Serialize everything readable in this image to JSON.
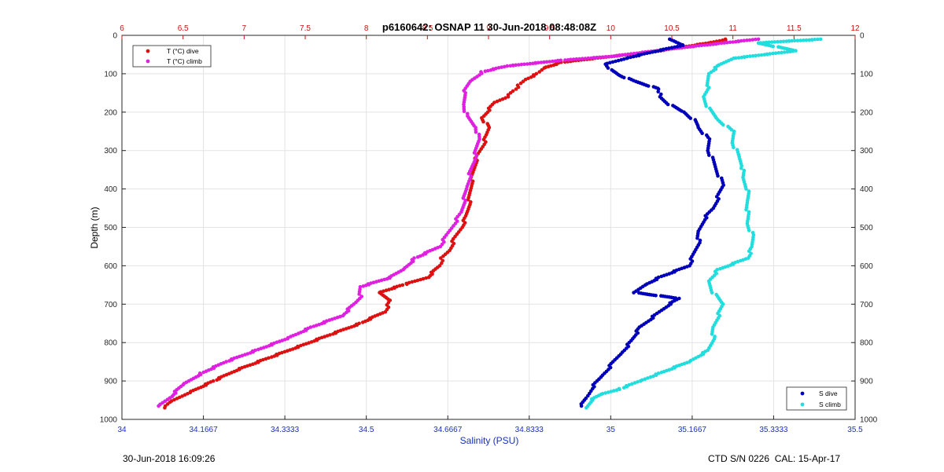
{
  "chart_data": {
    "type": "scatter",
    "title": "p6160642: OSNAP 11 30-Jun-2018 08:48:08Z",
    "ylabel": "Depth (m)",
    "ylim": [
      0,
      1000
    ],
    "y_reversed": true,
    "y_ticks": [
      0,
      100,
      200,
      300,
      400,
      500,
      600,
      700,
      800,
      900,
      1000
    ],
    "bottom_axis": {
      "label": "Salinity (PSU)",
      "lim": [
        34,
        35.5
      ],
      "ticks": [
        34,
        34.1667,
        34.3333,
        34.5,
        34.6667,
        34.8333,
        35,
        35.1667,
        35.3333,
        35.5
      ],
      "tick_labels": [
        "34",
        "34.1667",
        "34.3333",
        "34.5",
        "34.6667",
        "34.8333",
        "35",
        "35.1667",
        "35.3333",
        "35.5"
      ]
    },
    "top_axis": {
      "label": "",
      "lim": [
        6,
        12
      ],
      "ticks": [
        6,
        6.5,
        7,
        7.5,
        8,
        8.5,
        9,
        9.5,
        10,
        10.5,
        11,
        11.5,
        12
      ],
      "tick_labels": [
        "6",
        "6.5",
        "7",
        "7.5",
        "8",
        "8.5",
        "9",
        "9.5",
        "10",
        "10.5",
        "11",
        "11.5",
        "12"
      ]
    },
    "grid": true,
    "legends": [
      {
        "position": "top-left",
        "entries": [
          "T (°C) dive",
          "T (°C) climb"
        ]
      },
      {
        "position": "bottom-right",
        "entries": [
          "S dive",
          "S climb"
        ]
      }
    ],
    "series": [
      {
        "name": "T (°C) dive",
        "axis": "top",
        "color": "#dd1111",
        "points": [
          [
            10.95,
            10
          ],
          [
            10.8,
            20
          ],
          [
            10.6,
            30
          ],
          [
            10.3,
            45
          ],
          [
            10.0,
            55
          ],
          [
            9.6,
            70
          ],
          [
            9.45,
            85
          ],
          [
            9.4,
            100
          ],
          [
            9.3,
            115
          ],
          [
            9.25,
            130
          ],
          [
            9.2,
            145
          ],
          [
            9.15,
            160
          ],
          [
            9.05,
            175
          ],
          [
            9.0,
            195
          ],
          [
            8.95,
            215
          ],
          [
            9.0,
            240
          ],
          [
            8.98,
            265
          ],
          [
            8.95,
            290
          ],
          [
            8.9,
            320
          ],
          [
            8.88,
            350
          ],
          [
            8.86,
            380
          ],
          [
            8.85,
            410
          ],
          [
            8.84,
            440
          ],
          [
            8.82,
            470
          ],
          [
            8.78,
            500
          ],
          [
            8.72,
            530
          ],
          [
            8.68,
            560
          ],
          [
            8.62,
            580
          ],
          [
            8.6,
            600
          ],
          [
            8.5,
            630
          ],
          [
            8.3,
            650
          ],
          [
            8.1,
            670
          ],
          [
            8.2,
            690
          ],
          [
            8.15,
            720
          ],
          [
            7.95,
            750
          ],
          [
            7.7,
            780
          ],
          [
            7.45,
            810
          ],
          [
            7.2,
            840
          ],
          [
            6.95,
            870
          ],
          [
            6.75,
            900
          ],
          [
            6.55,
            930
          ],
          [
            6.4,
            955
          ],
          [
            6.35,
            970
          ]
        ]
      },
      {
        "name": "T (°C) climb",
        "axis": "top",
        "color": "#e020e0",
        "points": [
          [
            11.2,
            10
          ],
          [
            10.5,
            35
          ],
          [
            10.0,
            55
          ],
          [
            9.6,
            65
          ],
          [
            9.15,
            80
          ],
          [
            8.95,
            95
          ],
          [
            8.85,
            120
          ],
          [
            8.8,
            150
          ],
          [
            8.8,
            180
          ],
          [
            8.82,
            210
          ],
          [
            8.9,
            240
          ],
          [
            8.92,
            270
          ],
          [
            8.9,
            300
          ],
          [
            8.88,
            330
          ],
          [
            8.85,
            360
          ],
          [
            8.82,
            400
          ],
          [
            8.8,
            430
          ],
          [
            8.78,
            460
          ],
          [
            8.72,
            490
          ],
          [
            8.66,
            520
          ],
          [
            8.6,
            550
          ],
          [
            8.4,
            580
          ],
          [
            8.3,
            610
          ],
          [
            8.2,
            630
          ],
          [
            7.95,
            655
          ],
          [
            7.95,
            680
          ],
          [
            7.9,
            700
          ],
          [
            7.8,
            730
          ],
          [
            7.55,
            760
          ],
          [
            7.35,
            790
          ],
          [
            7.1,
            820
          ],
          [
            6.85,
            850
          ],
          [
            6.65,
            880
          ],
          [
            6.5,
            910
          ],
          [
            6.4,
            940
          ],
          [
            6.3,
            965
          ]
        ]
      },
      {
        "name": "S dive",
        "color": "#0000bb",
        "points": [
          [
            35.12,
            10
          ],
          [
            35.15,
            25
          ],
          [
            35.08,
            45
          ],
          [
            35.03,
            60
          ],
          [
            34.99,
            75
          ],
          [
            35.0,
            90
          ],
          [
            35.02,
            105
          ],
          [
            35.05,
            120
          ],
          [
            35.1,
            140
          ],
          [
            35.1,
            160
          ],
          [
            35.12,
            180
          ],
          [
            35.15,
            200
          ],
          [
            35.17,
            220
          ],
          [
            35.18,
            240
          ],
          [
            35.2,
            270
          ],
          [
            35.2,
            300
          ],
          [
            35.21,
            330
          ],
          [
            35.22,
            360
          ],
          [
            35.23,
            390
          ],
          [
            35.22,
            420
          ],
          [
            35.21,
            450
          ],
          [
            35.19,
            480
          ],
          [
            35.18,
            510
          ],
          [
            35.18,
            540
          ],
          [
            35.17,
            570
          ],
          [
            35.16,
            600
          ],
          [
            35.1,
            630
          ],
          [
            35.07,
            650
          ],
          [
            35.05,
            670
          ],
          [
            35.14,
            685
          ],
          [
            35.12,
            700
          ],
          [
            35.1,
            720
          ],
          [
            35.08,
            740
          ],
          [
            35.06,
            760
          ],
          [
            35.05,
            780
          ],
          [
            35.04,
            800
          ],
          [
            35.02,
            830
          ],
          [
            35.0,
            860
          ],
          [
            34.98,
            890
          ],
          [
            34.96,
            920
          ],
          [
            34.95,
            945
          ],
          [
            34.94,
            965
          ]
        ]
      },
      {
        "name": "S climb",
        "color": "#22dddd",
        "points": [
          [
            35.43,
            10
          ],
          [
            35.3,
            20
          ],
          [
            35.38,
            40
          ],
          [
            35.25,
            60
          ],
          [
            35.22,
            80
          ],
          [
            35.2,
            100
          ],
          [
            35.2,
            130
          ],
          [
            35.19,
            160
          ],
          [
            35.2,
            190
          ],
          [
            35.22,
            220
          ],
          [
            35.25,
            250
          ],
          [
            35.25,
            280
          ],
          [
            35.26,
            310
          ],
          [
            35.27,
            340
          ],
          [
            35.27,
            370
          ],
          [
            35.28,
            400
          ],
          [
            35.28,
            430
          ],
          [
            35.28,
            460
          ],
          [
            35.28,
            490
          ],
          [
            35.29,
            520
          ],
          [
            35.29,
            550
          ],
          [
            35.28,
            580
          ],
          [
            35.22,
            610
          ],
          [
            35.2,
            640
          ],
          [
            35.21,
            670
          ],
          [
            35.23,
            700
          ],
          [
            35.22,
            730
          ],
          [
            35.21,
            760
          ],
          [
            35.21,
            790
          ],
          [
            35.2,
            820
          ],
          [
            35.16,
            850
          ],
          [
            35.1,
            880
          ],
          [
            35.06,
            900
          ],
          [
            35.02,
            920
          ],
          [
            34.98,
            935
          ],
          [
            34.96,
            950
          ],
          [
            34.95,
            970
          ]
        ]
      }
    ]
  },
  "footer": {
    "timestamp": "30-Jun-2018 16:09:26",
    "serial": "CTD S/N 0226  CAL: 15-Apr-17"
  }
}
